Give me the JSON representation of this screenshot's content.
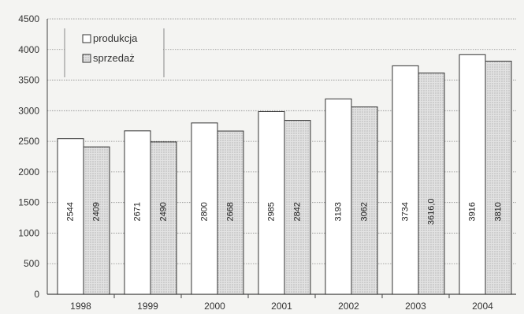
{
  "chart_data": {
    "type": "bar",
    "categories": [
      "1998",
      "1999",
      "2000",
      "2001",
      "2002",
      "2003",
      "2004"
    ],
    "series": [
      {
        "name": "produkcja",
        "values": [
          2544,
          2671,
          2800,
          2985,
          3193,
          3734,
          3916
        ],
        "labels": [
          "2544",
          "2671",
          "2800",
          "2985",
          "3193",
          "3734",
          "3916"
        ],
        "color": "#ffffff"
      },
      {
        "name": "sprzedaż",
        "values": [
          2409,
          2490,
          2668,
          2842,
          3062,
          3616.0,
          3810
        ],
        "labels": [
          "2409",
          "2490",
          "2668",
          "2842",
          "3062",
          "3616,0",
          "3810"
        ],
        "color": "#d9d9d9"
      }
    ],
    "yticks": [
      "0",
      "500",
      "1000",
      "1500",
      "2000",
      "2500",
      "3000",
      "3500",
      "4000",
      "4500"
    ],
    "ylim": [
      0,
      4500
    ],
    "grid": true,
    "legend_position": "top-left",
    "title": "",
    "xlabel": "",
    "ylabel": ""
  }
}
